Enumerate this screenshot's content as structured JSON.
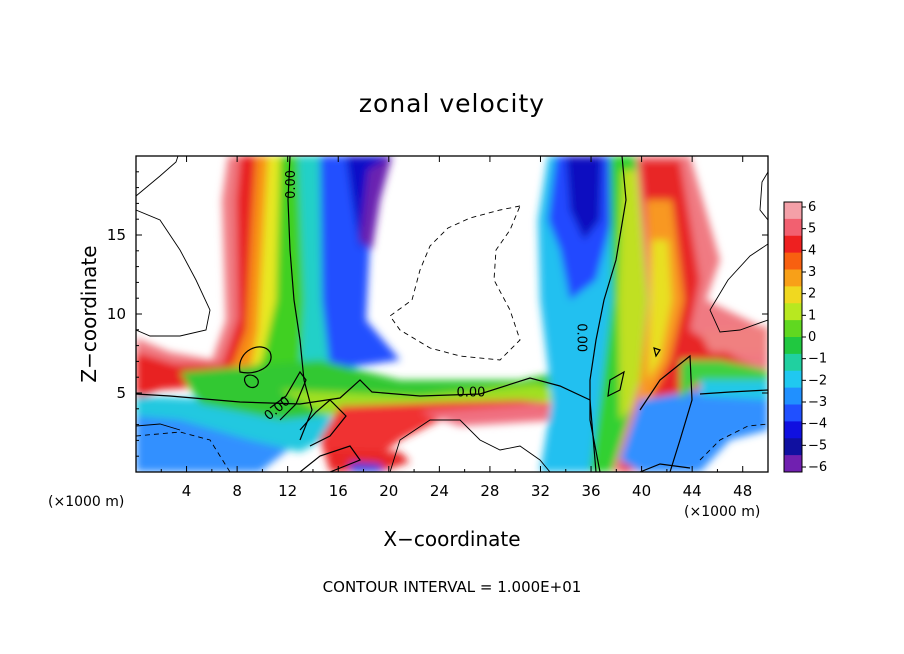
{
  "chart_data": {
    "type": "heatmap",
    "title": "zonal velocity",
    "xlabel": "X−coordinate",
    "ylabel": "Z−coordinate",
    "x_unit_label": "(×1000 m)",
    "x_unit_label_right": "(×1000 m)",
    "xlim": [
      0,
      50
    ],
    "ylim": [
      0,
      20
    ],
    "xticks": [
      "4",
      "8",
      "12",
      "16",
      "20",
      "24",
      "28",
      "32",
      "36",
      "40",
      "44",
      "48"
    ],
    "xtick_values": [
      4,
      8,
      12,
      16,
      20,
      24,
      28,
      32,
      36,
      40,
      44,
      48
    ],
    "yticks": [
      "5",
      "10",
      "15"
    ],
    "ytick_values": [
      5,
      10,
      15
    ],
    "colorbar": {
      "min": -6,
      "max": 6,
      "labels": [
        "6",
        "5",
        "4",
        "3",
        "2",
        "1",
        "0",
        "−1",
        "−2",
        "−3",
        "−4",
        "−5",
        "−6"
      ],
      "values": [
        6,
        5,
        4,
        3,
        2,
        1,
        0,
        -1,
        -2,
        -3,
        -4,
        -5,
        -6
      ]
    },
    "contour_labels": [
      {
        "text": "0.00",
        "x": 12.3,
        "y": 18.2,
        "angle": -90
      },
      {
        "text": "0.00",
        "x": 26.5,
        "y": 5.0,
        "angle": 0
      },
      {
        "text": "0.00",
        "x": 35.2,
        "y": 8.5,
        "angle": 90
      },
      {
        "text": "0.00",
        "x": 11.2,
        "y": 4.0,
        "angle": -40
      }
    ],
    "contour_interval": "CONTOUR INTERVAL = 1.000E+01"
  }
}
